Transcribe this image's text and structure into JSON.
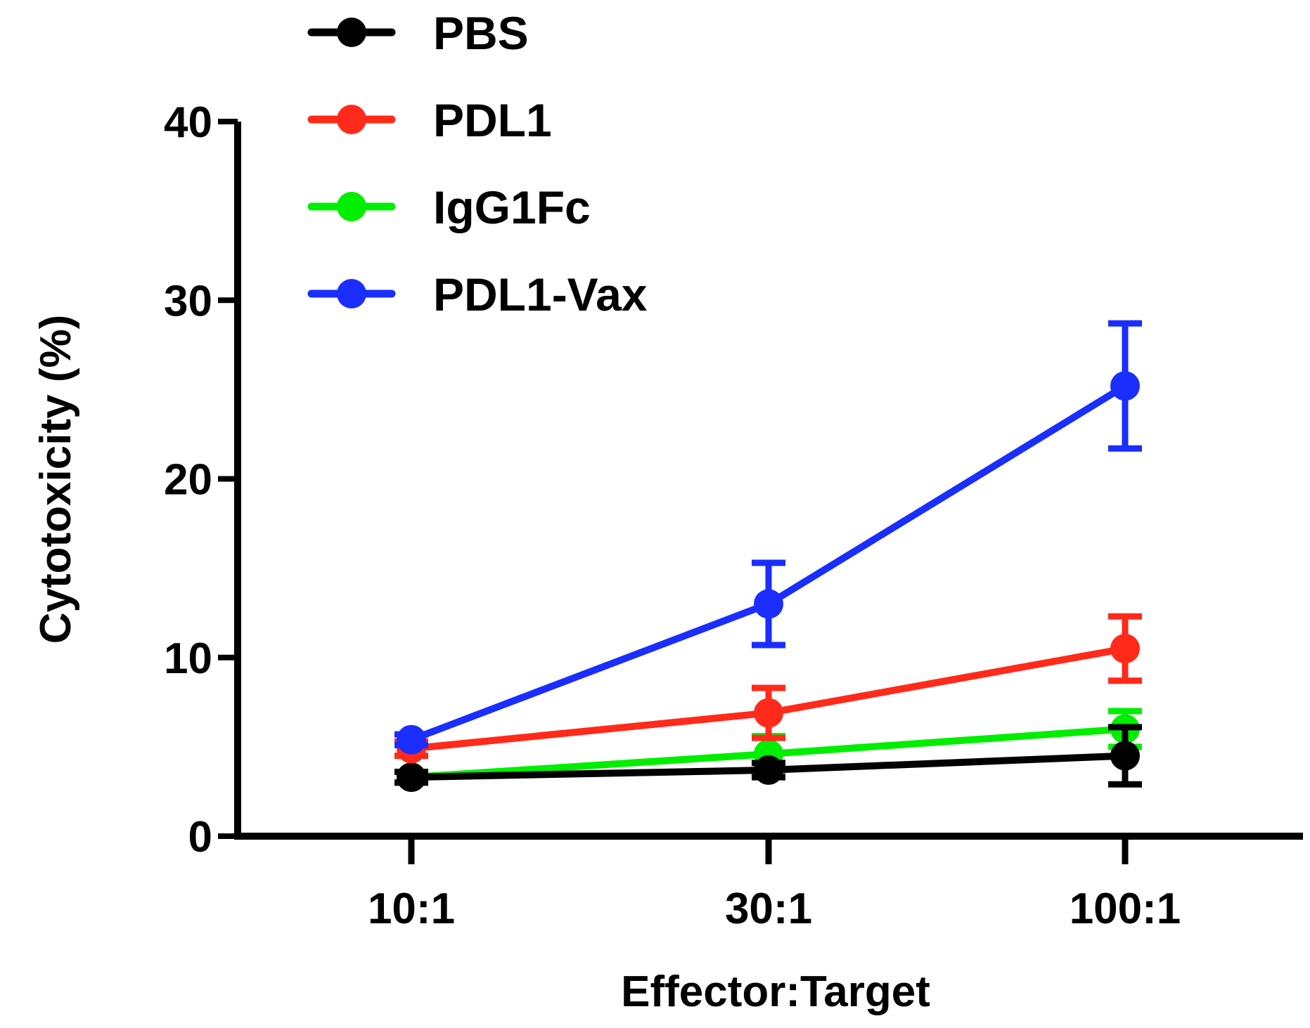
{
  "chart_data": {
    "type": "line",
    "title": "",
    "xlabel": "Effector:Target",
    "ylabel": "Cytotoxicity (%)",
    "categories": [
      "10:1",
      "30:1",
      "100:1"
    ],
    "ylim": [
      0,
      40
    ],
    "yticks": [
      0,
      10,
      20,
      30,
      40
    ],
    "ytick_labels": [
      "0",
      "10",
      "20",
      "30",
      "40"
    ],
    "grid": false,
    "legend_position": "top-left",
    "series": [
      {
        "name": "PBS",
        "color": "#000000",
        "values": [
          3.3,
          3.7,
          4.5
        ],
        "errors": [
          0.3,
          0.4,
          1.6
        ]
      },
      {
        "name": "PDL1",
        "color": "#ff2a1a",
        "values": [
          4.9,
          6.9,
          10.5
        ],
        "errors": [
          0.4,
          1.4,
          1.8
        ]
      },
      {
        "name": "IgG1Fc",
        "color": "#00ee00",
        "values": [
          3.3,
          4.6,
          6.0
        ],
        "errors": [
          0.3,
          1.0,
          1.0
        ]
      },
      {
        "name": "PDL1-Vax",
        "color": "#1a2eff",
        "values": [
          5.4,
          13.0,
          25.2
        ],
        "errors": [
          0.3,
          2.3,
          3.5
        ]
      }
    ]
  }
}
